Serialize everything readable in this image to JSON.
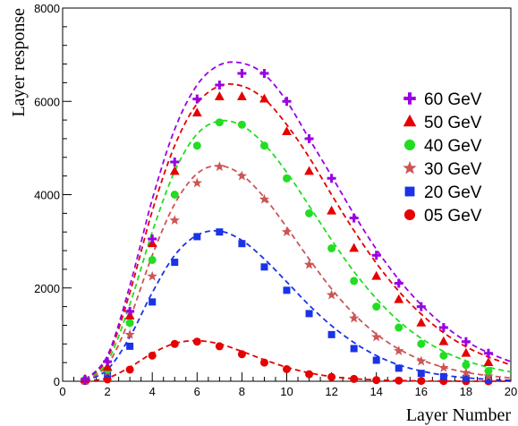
{
  "chart_data": {
    "type": "scatter",
    "title": "",
    "xlabel": "Layer Number",
    "ylabel": "Layer response",
    "xlim": [
      0,
      20
    ],
    "ylim": [
      0,
      8000
    ],
    "x_ticks": [
      0,
      2,
      4,
      6,
      8,
      10,
      12,
      14,
      16,
      18,
      20
    ],
    "y_ticks": [
      0,
      2000,
      4000,
      6000,
      8000
    ],
    "x_tick_labels": [
      "0",
      "2",
      "4",
      "6",
      "8",
      "10",
      "12",
      "14",
      "16",
      "18",
      "20"
    ],
    "y_tick_labels": [
      "0",
      "2000",
      "4000",
      "6000",
      "8000"
    ],
    "grid": false,
    "legend_position": "right",
    "series": [
      {
        "name": "60 GeV",
        "color": "#9a00e6",
        "marker": "plus",
        "x": [
          1,
          2,
          3,
          4,
          5,
          6,
          7,
          8,
          9,
          10,
          11,
          12,
          13,
          14,
          15,
          16,
          17,
          18,
          19
        ],
        "y": [
          40,
          420,
          1500,
          3050,
          4700,
          6050,
          6350,
          6600,
          6600,
          6000,
          5200,
          4350,
          3500,
          2700,
          2100,
          1600,
          1150,
          850,
          600
        ],
        "fit_x": [
          1,
          2,
          3,
          4,
          5,
          6,
          7,
          8,
          9,
          10,
          11,
          12,
          13,
          14,
          15,
          16,
          17,
          18,
          19,
          20
        ],
        "fit_y": [
          30,
          550,
          2050,
          3900,
          5400,
          6350,
          6780,
          6820,
          6580,
          6000,
          5200,
          4400,
          3580,
          2830,
          2180,
          1640,
          1200,
          860,
          610,
          420
        ]
      },
      {
        "name": "50 GeV",
        "color": "#e60000",
        "marker": "triangle",
        "x": [
          1,
          2,
          3,
          4,
          5,
          6,
          7,
          8,
          9,
          10,
          11,
          12,
          13,
          14,
          15,
          16,
          17,
          18,
          19
        ],
        "y": [
          40,
          300,
          1400,
          2950,
          4500,
          5750,
          6100,
          6100,
          6050,
          5350,
          4500,
          3650,
          2850,
          2250,
          1750,
          1250,
          850,
          600,
          400
        ],
        "fit_x": [
          1,
          2,
          3,
          4,
          5,
          6,
          7,
          8,
          9,
          10,
          11,
          12,
          13,
          14,
          15,
          16,
          17,
          18,
          19,
          20
        ],
        "fit_y": [
          30,
          500,
          1900,
          3650,
          5050,
          5950,
          6330,
          6330,
          6050,
          5500,
          4800,
          4000,
          3230,
          2530,
          1930,
          1440,
          1040,
          740,
          520,
          350
        ]
      },
      {
        "name": "40 GeV",
        "color": "#22dd22",
        "marker": "circle",
        "x": [
          1,
          2,
          3,
          4,
          5,
          6,
          7,
          8,
          9,
          10,
          11,
          12,
          13,
          14,
          15,
          16,
          17,
          18,
          19
        ],
        "y": [
          30,
          250,
          1250,
          2600,
          4000,
          5050,
          5550,
          5500,
          5050,
          4350,
          3600,
          2850,
          2150,
          1600,
          1150,
          800,
          550,
          350,
          220
        ],
        "fit_x": [
          1,
          2,
          3,
          4,
          5,
          6,
          7,
          8,
          9,
          10,
          11,
          12,
          13,
          14,
          15,
          16,
          17,
          18,
          19,
          20
        ],
        "fit_y": [
          25,
          420,
          1650,
          3200,
          4500,
          5300,
          5580,
          5480,
          5080,
          4480,
          3760,
          3030,
          2350,
          1770,
          1290,
          920,
          640,
          440,
          300,
          200
        ]
      },
      {
        "name": "30 GeV",
        "color": "#cc5555",
        "marker": "star",
        "x": [
          1,
          2,
          3,
          4,
          5,
          6,
          7,
          8,
          9,
          10,
          11,
          12,
          13,
          14,
          15,
          16,
          17,
          18,
          19
        ],
        "y": [
          20,
          200,
          1000,
          2250,
          3450,
          4250,
          4600,
          4400,
          3900,
          3200,
          2500,
          1850,
          1350,
          950,
          650,
          430,
          290,
          180,
          110
        ],
        "fit_x": [
          1,
          2,
          3,
          4,
          5,
          6,
          7,
          8,
          9,
          10,
          11,
          12,
          13,
          14,
          15,
          16,
          17,
          18,
          19,
          20
        ],
        "fit_y": [
          20,
          350,
          1350,
          2700,
          3800,
          4450,
          4620,
          4420,
          3940,
          3300,
          2620,
          1980,
          1440,
          1010,
          690,
          460,
          300,
          190,
          120,
          70
        ]
      },
      {
        "name": "20 GeV",
        "color": "#1a33e6",
        "marker": "square",
        "x": [
          1,
          2,
          3,
          4,
          5,
          6,
          7,
          8,
          9,
          10,
          11,
          12,
          13,
          14,
          15,
          16,
          17,
          18,
          19
        ],
        "y": [
          10,
          150,
          750,
          1700,
          2550,
          3100,
          3200,
          2950,
          2450,
          1950,
          1450,
          1000,
          700,
          450,
          280,
          170,
          100,
          60,
          30
        ],
        "fit_x": [
          1,
          2,
          3,
          4,
          5,
          6,
          7,
          8,
          9,
          10,
          11,
          12,
          13,
          14,
          15,
          16,
          17,
          18,
          19,
          20
        ],
        "fit_y": [
          10,
          250,
          950,
          1900,
          2700,
          3130,
          3220,
          3020,
          2620,
          2130,
          1630,
          1190,
          830,
          550,
          350,
          220,
          130,
          75,
          40,
          20
        ]
      },
      {
        "name": "05 GeV",
        "color": "#e60000",
        "marker": "circle",
        "x": [
          1,
          2,
          3,
          4,
          5,
          6,
          7,
          8,
          9,
          10,
          11,
          12,
          13,
          14,
          15,
          16,
          17,
          18,
          19
        ],
        "y": [
          5,
          40,
          250,
          550,
          800,
          850,
          750,
          580,
          400,
          260,
          150,
          90,
          50,
          25,
          15,
          8,
          4,
          2,
          1
        ],
        "fit_x": [
          1,
          2,
          3,
          4,
          5,
          6,
          7,
          8,
          9,
          10,
          11,
          12,
          13,
          14,
          15,
          16,
          17,
          18,
          19,
          20
        ],
        "fit_y": [
          5,
          70,
          300,
          600,
          810,
          870,
          800,
          640,
          460,
          300,
          180,
          100,
          55,
          28,
          14,
          7,
          3,
          1,
          0,
          0
        ]
      }
    ]
  }
}
